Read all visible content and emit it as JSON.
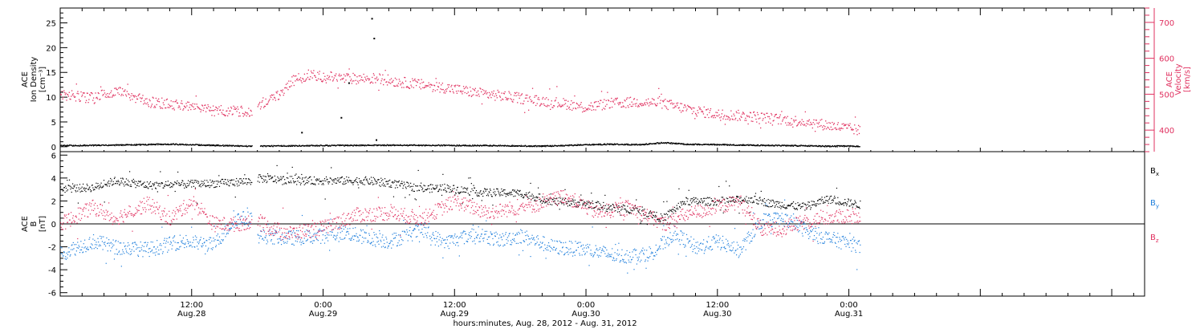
{
  "colors": {
    "black": "#000000",
    "pink": "#e0305f",
    "blue": "#1f7fdc"
  },
  "xaxis": {
    "caption": "hours:minutes, Aug. 28, 2012 - Aug. 31, 2012",
    "range_hours": [
      0,
      99
    ],
    "ticks": [
      {
        "hour": 12,
        "time": "12:00",
        "date": "Aug.28"
      },
      {
        "hour": 24,
        "time": "0:00",
        "date": "Aug.29"
      },
      {
        "hour": 36,
        "time": "12:00",
        "date": "Aug.29"
      },
      {
        "hour": 48,
        "time": "0:00",
        "date": "Aug.30"
      },
      {
        "hour": 60,
        "time": "12:00",
        "date": "Aug.30"
      },
      {
        "hour": 72,
        "time": "0:00",
        "date": "Aug.31"
      }
    ]
  },
  "chart_data": [
    {
      "type": "scatter",
      "ylabel_left": [
        "ACE",
        "Ion Density",
        "[cm⁻³]"
      ],
      "ylabel_right": [
        "ACE",
        "Velocity",
        "[km/s]"
      ],
      "ylim_left": [
        -1,
        28
      ],
      "ylim_right": [
        340,
        740
      ],
      "left_ticks": [
        "0",
        "5",
        "10",
        "15",
        "20",
        "25"
      ],
      "right_ticks": [
        "400",
        "500",
        "600",
        "700"
      ],
      "series": [
        {
          "axis": "left",
          "color": "#000000",
          "keypoints": [
            [
              0,
              0.3
            ],
            [
              5,
              0.4
            ],
            [
              10,
              0.6
            ],
            [
              15,
              0.3
            ],
            [
              17.5,
              0.2
            ],
            [
              23,
              0.3
            ],
            [
              30,
              0.4
            ],
            [
              40,
              0.3
            ],
            [
              44,
              0.2
            ],
            [
              50,
              0.6
            ],
            [
              53,
              0.5
            ],
            [
              55,
              0.9
            ],
            [
              57,
              0.6
            ],
            [
              60,
              0.5
            ],
            [
              70,
              0.2
            ],
            [
              73,
              0.2
            ]
          ],
          "spikes": [
            [
              22,
              3
            ],
            [
              25.6,
              6
            ],
            [
              26.3,
              13
            ],
            [
              28.4,
              26
            ],
            [
              28.6,
              22
            ],
            [
              28.8,
              1.5
            ]
          ]
        },
        {
          "axis": "right",
          "color": "#e0305f",
          "keypoints": [
            [
              0,
              500
            ],
            [
              3,
              490
            ],
            [
              5,
              510
            ],
            [
              8,
              480
            ],
            [
              11,
              470
            ],
            [
              14,
              455
            ],
            [
              17.5,
              455
            ],
            [
              18,
              470
            ],
            [
              20,
              500
            ],
            [
              21,
              535
            ],
            [
              22.5,
              555
            ],
            [
              26,
              545
            ],
            [
              29,
              545
            ],
            [
              31,
              535
            ],
            [
              35,
              520
            ],
            [
              38,
              505
            ],
            [
              42,
              490
            ],
            [
              46,
              475
            ],
            [
              48,
              465
            ],
            [
              50,
              475
            ],
            [
              53,
              480
            ],
            [
              55,
              475
            ],
            [
              58,
              455
            ],
            [
              60,
              445
            ],
            [
              63,
              440
            ],
            [
              66,
              430
            ],
            [
              68,
              425
            ],
            [
              70,
              415
            ],
            [
              73,
              400
            ]
          ]
        }
      ]
    },
    {
      "type": "scatter",
      "ylabel_left": [
        "ACE",
        "B",
        "[nT]"
      ],
      "ylim": [
        -6.3,
        6.3
      ],
      "left_ticks": [
        "-6",
        "-4",
        "-2",
        "0",
        "2",
        "4",
        "6"
      ],
      "series": [
        {
          "name": "Bx",
          "color": "#000000",
          "keypoints": [
            [
              0,
              3.1
            ],
            [
              3,
              3.2
            ],
            [
              5,
              3.8
            ],
            [
              8,
              3.4
            ],
            [
              12,
              3.5
            ],
            [
              15,
              3.6
            ],
            [
              17.5,
              3.8
            ],
            [
              18,
              4.0
            ],
            [
              22,
              3.8
            ],
            [
              25,
              3.8
            ],
            [
              28,
              3.8
            ],
            [
              30,
              3.6
            ],
            [
              33,
              3.1
            ],
            [
              35,
              3.2
            ],
            [
              38,
              2.8
            ],
            [
              42,
              2.7
            ],
            [
              45,
              2.0
            ],
            [
              48,
              1.8
            ],
            [
              50,
              1.5
            ],
            [
              53,
              1.2
            ],
            [
              55,
              0.5
            ],
            [
              57,
              2.0
            ],
            [
              60,
              2.0
            ],
            [
              63,
              2.2
            ],
            [
              65,
              1.8
            ],
            [
              68,
              1.5
            ],
            [
              70,
              2.2
            ],
            [
              73,
              1.7
            ]
          ]
        },
        {
          "name": "By",
          "color": "#1f7fdc",
          "keypoints": [
            [
              0,
              -2.5
            ],
            [
              3,
              -1.5
            ],
            [
              5,
              -2.0
            ],
            [
              8,
              -2.2
            ],
            [
              11,
              -1.5
            ],
            [
              14,
              -1.8
            ],
            [
              16,
              0.5
            ],
            [
              17.5,
              0.5
            ],
            [
              18,
              -1.0
            ],
            [
              21,
              -1.2
            ],
            [
              24,
              -1.0
            ],
            [
              26,
              -0.7
            ],
            [
              28,
              -1.2
            ],
            [
              30,
              -1.5
            ],
            [
              33,
              -0.5
            ],
            [
              35,
              -1.6
            ],
            [
              38,
              -0.8
            ],
            [
              40,
              -1.4
            ],
            [
              42,
              -1.0
            ],
            [
              45,
              -2.0
            ],
            [
              48,
              -2.2
            ],
            [
              51,
              -2.8
            ],
            [
              54,
              -2.5
            ],
            [
              56,
              -0.8
            ],
            [
              58,
              -2.0
            ],
            [
              60,
              -1.5
            ],
            [
              62,
              -2.3
            ],
            [
              64,
              0.3
            ],
            [
              66,
              0.5
            ],
            [
              68,
              -0.5
            ],
            [
              70,
              -1.2
            ],
            [
              73,
              -1.9
            ]
          ]
        },
        {
          "name": "Bz",
          "color": "#e0305f",
          "keypoints": [
            [
              0,
              0.0
            ],
            [
              3,
              1.5
            ],
            [
              5,
              0.5
            ],
            [
              8,
              1.8
            ],
            [
              10,
              0.5
            ],
            [
              12,
              2.0
            ],
            [
              14,
              0.0
            ],
            [
              16,
              0.0
            ],
            [
              17.5,
              0.3
            ],
            [
              18,
              0.0
            ],
            [
              21,
              -0.8
            ],
            [
              24,
              -0.3
            ],
            [
              27,
              0.8
            ],
            [
              30,
              1.0
            ],
            [
              33,
              0.5
            ],
            [
              36,
              2.0
            ],
            [
              39,
              1.0
            ],
            [
              42,
              1.5
            ],
            [
              44,
              1.8
            ],
            [
              46,
              2.5
            ],
            [
              49,
              1.0
            ],
            [
              52,
              1.5
            ],
            [
              55,
              0.0
            ],
            [
              57,
              0.8
            ],
            [
              60,
              1.5
            ],
            [
              62,
              2.0
            ],
            [
              64,
              -0.5
            ],
            [
              66,
              -0.3
            ],
            [
              68,
              0.2
            ],
            [
              70,
              0.6
            ],
            [
              73,
              0.8
            ]
          ]
        }
      ]
    }
  ]
}
